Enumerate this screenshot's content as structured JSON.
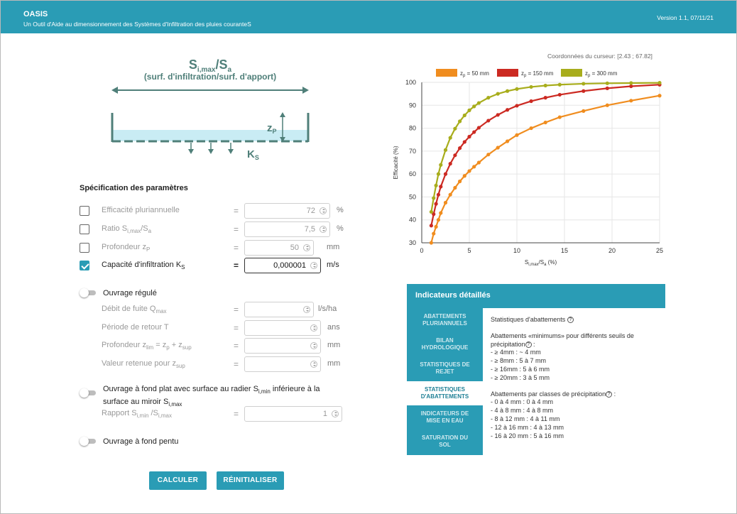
{
  "header": {
    "title": "OASIS",
    "subtitle": "Un Outil d'Aide au dimensionnement des Systèmes d'Infiltration des pluies couranteS",
    "version": "Version 1.1, 07/11/21"
  },
  "diagram": {
    "ratio_main": "S",
    "ratio_sub1": "i,max",
    "ratio_slash": "/S",
    "ratio_sub2": "a",
    "caption": "(surf. d'infiltration/surf. d'apport)",
    "zp_main": "z",
    "zp_sub": "P",
    "ks_main": "K",
    "ks_sub": "S"
  },
  "params": {
    "section_title": "Spécification des paramètres",
    "rows": [
      {
        "label": "Efficacité pluriannuelle",
        "value": "72",
        "unit": "%",
        "checked": false
      },
      {
        "label": "Ratio S",
        "label_sub1": "i,max",
        "label_mid": "/S",
        "label_sub2": "a",
        "value": "7,5",
        "unit": "%",
        "checked": false
      },
      {
        "label": "Profondeur z",
        "label_sub1": "P",
        "value": "50",
        "unit": "mm",
        "checked": false
      },
      {
        "label": "Capacité d'infiltration K",
        "label_sub1": "S",
        "value": "0,000001",
        "unit": "m/s",
        "checked": true
      }
    ],
    "equals": "="
  },
  "regulated": {
    "toggle_label": "Ouvrage régulé",
    "rows": [
      {
        "label": "Débit de fuite Q",
        "label_sub": "max",
        "unit": "l/s/ha"
      },
      {
        "label": "Période de retour T",
        "label_sub": "",
        "unit": "ans"
      },
      {
        "label": "Profondeur z",
        "label_sub": "lim",
        "label_rest": " = z",
        "label_sub2": "p",
        "label_rest2": " + z",
        "label_sub3": "sup",
        "unit": "mm"
      },
      {
        "label": "Valeur retenue pour z",
        "label_sub": "sup",
        "unit": "mm"
      }
    ]
  },
  "flat": {
    "toggle_label_1": "Ouvrage à fond plat avec surface au radier S",
    "toggle_sub_1": "i,min",
    "toggle_label_2": " inférieure à la",
    "toggle_label_3": "surface au miroir S",
    "toggle_sub_3": "i,max",
    "ratio_label": "Rapport S",
    "ratio_sub1": "i,min",
    "ratio_mid": " /S",
    "ratio_sub2": "i,max",
    "ratio_value": "1"
  },
  "pointed": {
    "toggle_label": "Ouvrage à fond pentu"
  },
  "buttons": {
    "compute": "CALCULER",
    "reset": "RÉINITIALISER"
  },
  "cursor": {
    "label": "Coordonnées du curseur: [2.43 ; 67.82]"
  },
  "chart_data": {
    "type": "line",
    "ylabel": "Efficacité (%)",
    "xlabel_main": "S",
    "xlabel_sub": "i,max",
    "xlabel_rest": "/S",
    "xlabel_sub2": "a",
    "xlabel_unit": " (%)",
    "xlim": [
      0,
      25
    ],
    "ylim": [
      30,
      100
    ],
    "xticks": [
      0,
      5,
      10,
      15,
      20,
      25
    ],
    "yticks": [
      30,
      40,
      50,
      60,
      70,
      80,
      90,
      100
    ],
    "grid": true,
    "legend_position": "top",
    "series": [
      {
        "name": "= 50 mm",
        "name_prefix": "z",
        "name_sub": "p",
        "color": "#f08d1f",
        "x": [
          1,
          1.25,
          1.5,
          1.75,
          2,
          2.5,
          3,
          3.5,
          4,
          4.5,
          5,
          5.5,
          6,
          7,
          8,
          9,
          10,
          11.5,
          13,
          14.5,
          17,
          19.5,
          22,
          25
        ],
        "y": [
          30,
          34,
          37,
          40,
          43,
          47.5,
          51,
          54,
          56.8,
          59.2,
          61.3,
          63.2,
          65,
          68.5,
          71.5,
          74.3,
          77,
          80,
          82.5,
          84.8,
          87.5,
          90,
          92,
          94.2
        ]
      },
      {
        "name": "= 150 mm",
        "name_prefix": "z",
        "name_sub": "p",
        "color": "#cc2a22",
        "x": [
          1,
          1.25,
          1.5,
          1.75,
          2,
          2.5,
          3,
          3.5,
          4,
          4.5,
          5,
          5.5,
          6,
          7,
          8,
          9,
          10,
          11.5,
          13,
          14.5,
          17,
          19.5,
          22,
          25
        ],
        "y": [
          37.5,
          42.5,
          47,
          51,
          54.5,
          60,
          64.5,
          68.2,
          71.3,
          74,
          76.3,
          78.3,
          80.2,
          83.3,
          85.8,
          88,
          89.8,
          91.8,
          93.3,
          94.6,
          96.2,
          97.4,
          98.3,
          99
        ]
      },
      {
        "name": "= 300 mm",
        "name_prefix": "z",
        "name_sub": "p",
        "color": "#a8ad1c",
        "x": [
          1,
          1.25,
          1.5,
          1.75,
          2,
          2.5,
          3,
          3.5,
          4,
          4.5,
          5,
          5.5,
          6,
          7,
          8,
          9,
          10,
          11.5,
          13,
          14.5,
          17,
          19.5,
          22,
          25
        ],
        "y": [
          43.5,
          49.5,
          55,
          60,
          64,
          70.5,
          75.8,
          79.8,
          83,
          85.6,
          87.8,
          89.5,
          91,
          93.3,
          95,
          96.2,
          97.1,
          98,
          98.6,
          99,
          99.4,
          99.6,
          99.7,
          99.8
        ]
      }
    ]
  },
  "indicators": {
    "title": "Indicateurs détaillés",
    "tabs": [
      {
        "line1": "ABATTEMENTS",
        "line2": "PLURIANNUELS",
        "active": false
      },
      {
        "line1": "BILAN",
        "line2": "HYDROLOGIQUE",
        "active": false
      },
      {
        "line1": "STATISTIQUES DE",
        "line2": "REJET",
        "active": false
      },
      {
        "line1": "STATISTIQUES",
        "line2": "D'ABATTEMENTS",
        "active": true
      },
      {
        "line1": "INDICATEURS DE",
        "line2": "MISE EN EAU",
        "active": false
      },
      {
        "line1": "SATURATION DU",
        "line2": "SOL",
        "active": false
      }
    ],
    "content": {
      "heading": "Statistiques d'abattements",
      "min_intro_1": "Abattements «minimums» pour différents seuils de",
      "min_intro_2": "précipitation",
      "min_intro_3": " :",
      "min_items": [
        "- ≥ 4mm : ~ 4 mm",
        "- ≥ 8mm : 5 à 7 mm",
        "- ≥ 16mm : 5 à 6 mm",
        "- ≥ 20mm : 3 à 5 mm"
      ],
      "class_intro": "Abattements par classes de précipitation",
      "class_intro_end": " :",
      "class_items": [
        "- 0 à 4 mm : 0 à 4 mm",
        "- 4 à 8 mm : 4 à 8 mm",
        "- 8 à 12 mm : 4 à 11 mm",
        "- 12 à 16 mm : 4 à 13 mm",
        "- 16 à 20 mm : 5 à 16 mm"
      ]
    }
  },
  "help_glyph": "?"
}
